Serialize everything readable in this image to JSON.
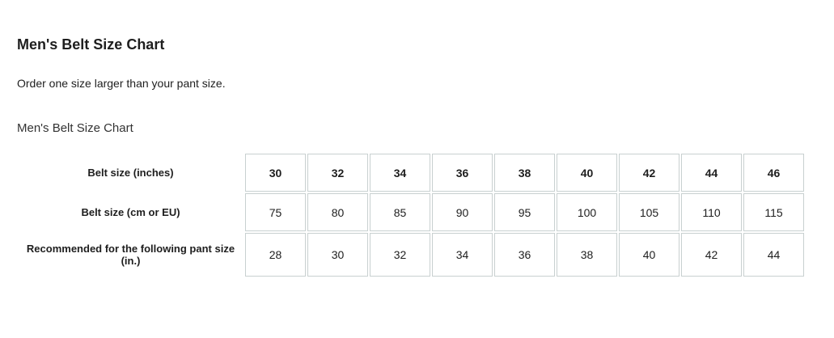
{
  "title": "Men's Belt Size Chart",
  "subtitle": "Order one size larger than your pant size.",
  "caption": "Men's Belt Size Chart",
  "rows": [
    {
      "label": "Belt size (inches)",
      "values": [
        "30",
        "32",
        "34",
        "36",
        "38",
        "40",
        "42",
        "44",
        "46"
      ]
    },
    {
      "label": "Belt size (cm or EU)",
      "values": [
        "75",
        "80",
        "85",
        "90",
        "95",
        "100",
        "105",
        "110",
        "115"
      ]
    },
    {
      "label": "Recommended for the following pant size (in.)",
      "values": [
        "28",
        "30",
        "32",
        "34",
        "36",
        "38",
        "40",
        "42",
        "44"
      ]
    }
  ]
}
